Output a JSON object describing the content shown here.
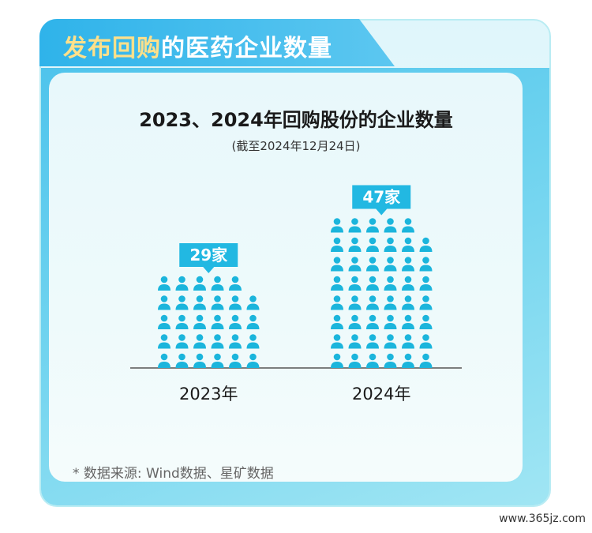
{
  "header": {
    "title_part1": "发布回购",
    "title_part2": "的医药企业数量"
  },
  "chart_data": {
    "type": "bar",
    "title": "2023、2024年回购股份的企业数量",
    "subtitle": "(截至2024年12月24日)",
    "categories": [
      "2023年",
      "2024年"
    ],
    "values": [
      29,
      47
    ],
    "value_labels": [
      "29家",
      "47家"
    ],
    "icon": "person-icon",
    "icon_color": "#1bb5dc",
    "label_color": "#22b8e2"
  },
  "footer": {
    "source": "* 数据来源: Wind数据、星矿数据"
  },
  "watermark": "www.365jz.com"
}
